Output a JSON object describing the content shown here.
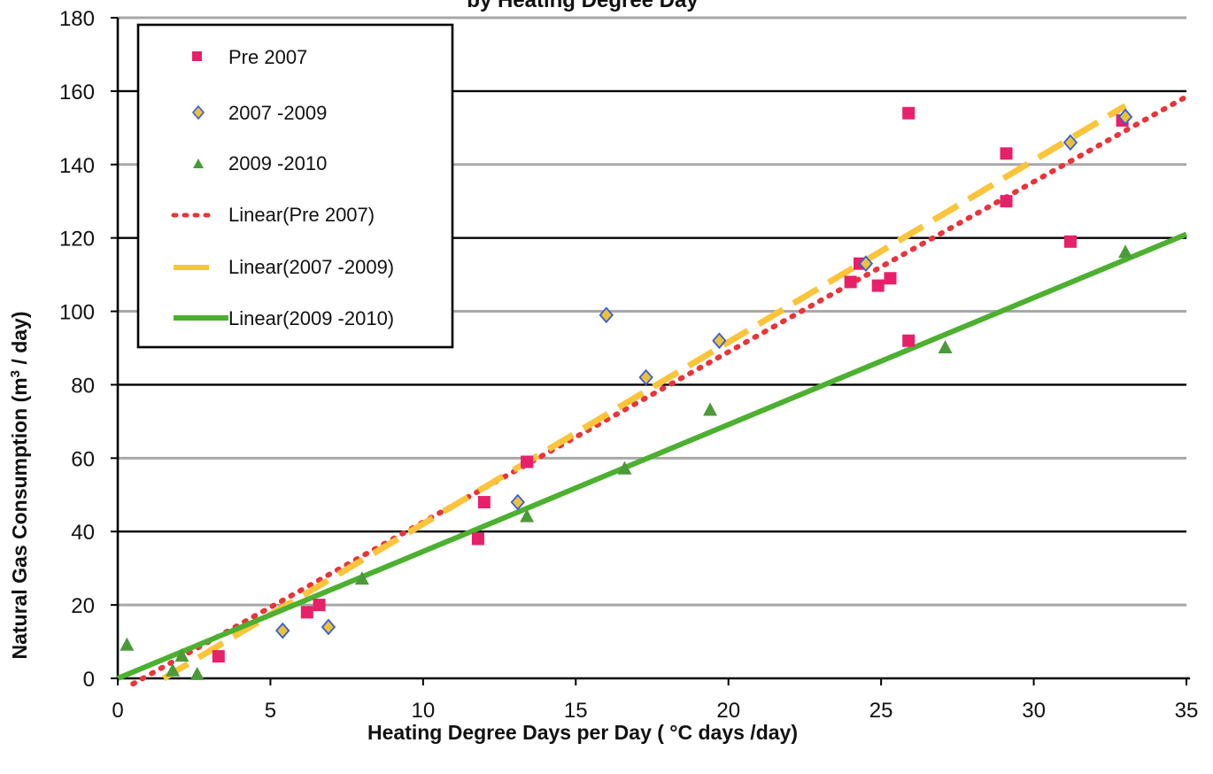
{
  "chart_data": {
    "type": "scatter",
    "title": "by Heating Degree Day",
    "xlabel": "Heating Degree Days per Day (  °C days /day)",
    "ylabel_prefix": "Natural Gas Consumption (m",
    "ylabel_sup": "3",
    "ylabel_suffix": " / day)",
    "xlim": [
      0,
      35
    ],
    "ylim": [
      0,
      180
    ],
    "x_ticks": [
      0,
      5,
      10,
      15,
      20,
      25,
      30,
      35
    ],
    "y_ticks": [
      0,
      20,
      40,
      60,
      80,
      100,
      120,
      140,
      160,
      180
    ],
    "grid": true,
    "legend_position": "top-left",
    "colors": {
      "pre2007": "#e8206a",
      "y2007_2009": "#e8c33a",
      "y2007_2009_edge": "#3a5bd9",
      "y2009_2010": "#4a9a3a",
      "trend_pre2007": "#e8343a",
      "trend_2007_2009": "#fbc43a",
      "trend_2009_2010": "#4cb030"
    },
    "series": [
      {
        "name": "Pre 2007",
        "marker": "square",
        "color_key": "pre2007",
        "points": [
          [
            3.3,
            6
          ],
          [
            6.2,
            18
          ],
          [
            6.6,
            20
          ],
          [
            11.8,
            38
          ],
          [
            12.0,
            48
          ],
          [
            13.4,
            59
          ],
          [
            24.0,
            108
          ],
          [
            24.3,
            113
          ],
          [
            24.9,
            107
          ],
          [
            25.3,
            109
          ],
          [
            25.9,
            154
          ],
          [
            25.9,
            92
          ],
          [
            29.1,
            143
          ],
          [
            29.1,
            130
          ],
          [
            31.2,
            119
          ],
          [
            32.9,
            152
          ]
        ]
      },
      {
        "name": "2007 -2009",
        "marker": "diamond",
        "color_key": "y2007_2009",
        "points": [
          [
            5.4,
            13
          ],
          [
            6.9,
            14
          ],
          [
            13.1,
            48
          ],
          [
            16.0,
            99
          ],
          [
            17.3,
            82
          ],
          [
            19.7,
            92
          ],
          [
            24.5,
            113
          ],
          [
            31.2,
            146
          ],
          [
            33.0,
            153
          ]
        ]
      },
      {
        "name": "2009 -2010",
        "marker": "triangle",
        "color_key": "y2009_2010",
        "points": [
          [
            0.3,
            9
          ],
          [
            1.8,
            2
          ],
          [
            2.1,
            6
          ],
          [
            2.6,
            1
          ],
          [
            8.0,
            27
          ],
          [
            13.4,
            44
          ],
          [
            16.6,
            57
          ],
          [
            19.4,
            73
          ],
          [
            27.1,
            90
          ],
          [
            33.0,
            116
          ]
        ]
      }
    ],
    "trendlines": [
      {
        "name": "Linear(Pre 2007)",
        "style": "dotted",
        "color_key": "trend_pre2007",
        "x": [
          0.5,
          35
        ],
        "y": [
          -1.5,
          158.5
        ]
      },
      {
        "name": "Linear(2007  -2009)",
        "style": "dashed",
        "color_key": "trend_2007_2009",
        "x": [
          1.5,
          33
        ],
        "y": [
          0,
          156
        ]
      },
      {
        "name": "Linear(2009  -2010)",
        "style": "solid",
        "color_key": "trend_2009_2010",
        "x": [
          0,
          35
        ],
        "y": [
          0,
          121
        ]
      }
    ]
  }
}
